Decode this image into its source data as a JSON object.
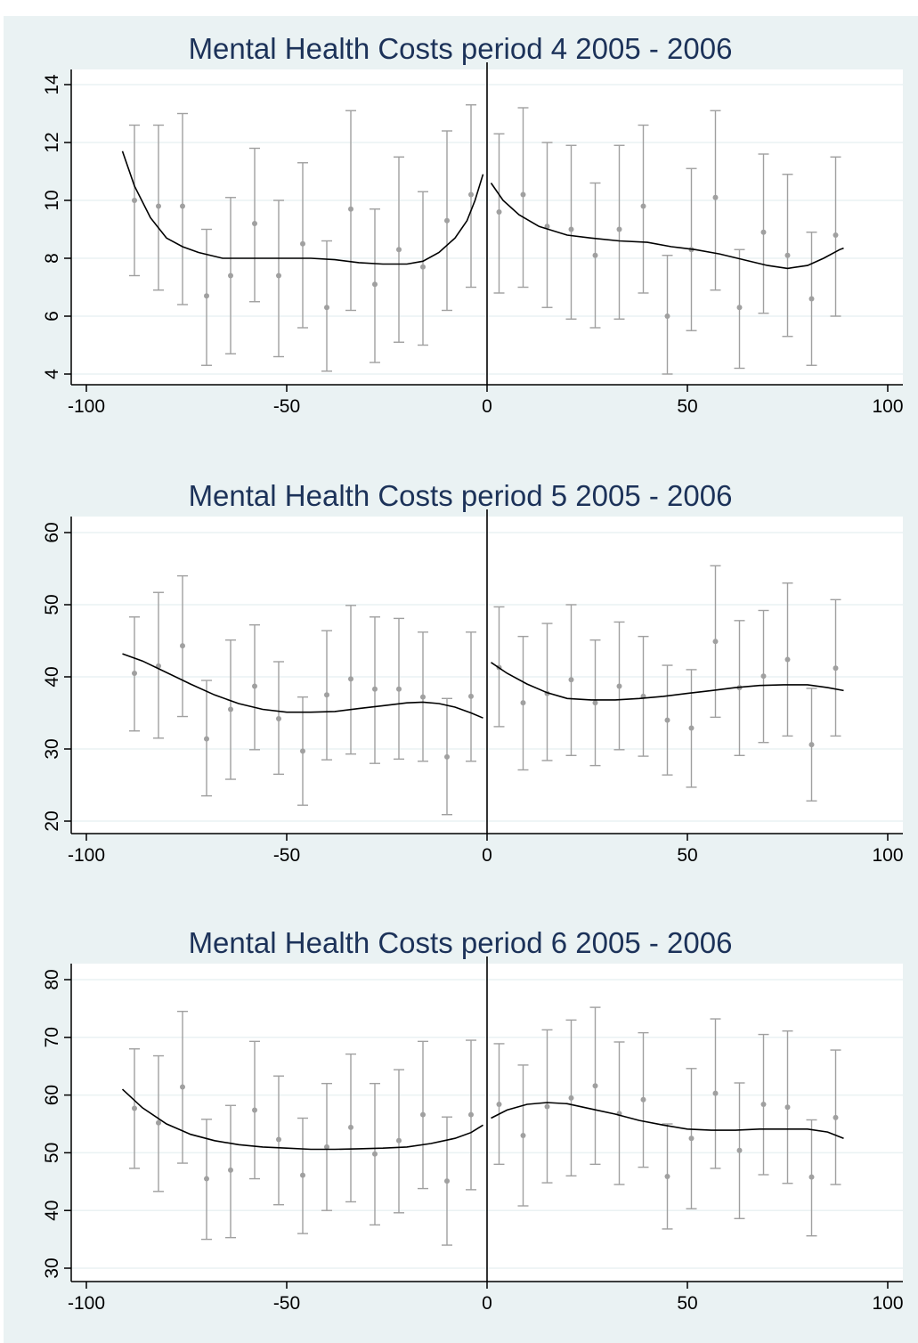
{
  "colors": {
    "background": "#eaf2f3",
    "plot_area": "#ffffff",
    "grid": "#eaf2f3",
    "title": "#1c3259",
    "points": "#a0a0a0",
    "fit_line": "#000000",
    "cutoff_line": "#000000"
  },
  "chart_data": [
    {
      "type": "scatter",
      "title": "Mental Health Costs period 4 2005 - 2006",
      "xlabel": "",
      "ylabel": "",
      "xlim": [
        -100,
        100
      ],
      "ylim": [
        4,
        14
      ],
      "xticks": [
        -100,
        -50,
        0,
        50,
        100
      ],
      "yticks": [
        4,
        6,
        8,
        10,
        12,
        14
      ],
      "grid": true,
      "cutoff_x": 0,
      "points": [
        {
          "x": -88,
          "y": 10.0,
          "low": 7.4,
          "high": 12.6
        },
        {
          "x": -82,
          "y": 9.8,
          "low": 6.9,
          "high": 12.6
        },
        {
          "x": -76,
          "y": 9.8,
          "low": 6.4,
          "high": 13.0
        },
        {
          "x": -70,
          "y": 6.7,
          "low": 4.3,
          "high": 9.0
        },
        {
          "x": -64,
          "y": 7.4,
          "low": 4.7,
          "high": 10.1
        },
        {
          "x": -58,
          "y": 9.2,
          "low": 6.5,
          "high": 11.8
        },
        {
          "x": -52,
          "y": 7.4,
          "low": 4.6,
          "high": 10.0
        },
        {
          "x": -46,
          "y": 8.5,
          "low": 5.6,
          "high": 11.3
        },
        {
          "x": -40,
          "y": 6.3,
          "low": 4.1,
          "high": 8.6
        },
        {
          "x": -34,
          "y": 9.7,
          "low": 6.2,
          "high": 13.1
        },
        {
          "x": -28,
          "y": 7.1,
          "low": 4.4,
          "high": 9.7
        },
        {
          "x": -22,
          "y": 8.3,
          "low": 5.1,
          "high": 11.5
        },
        {
          "x": -16,
          "y": 7.7,
          "low": 5.0,
          "high": 10.3
        },
        {
          "x": -10,
          "y": 9.3,
          "low": 6.2,
          "high": 12.4
        },
        {
          "x": -4,
          "y": 10.2,
          "low": 7.0,
          "high": 13.3
        },
        {
          "x": 3,
          "y": 9.6,
          "low": 6.8,
          "high": 12.3
        },
        {
          "x": 9,
          "y": 10.2,
          "low": 7.0,
          "high": 13.2
        },
        {
          "x": 15,
          "y": 9.1,
          "low": 6.3,
          "high": 12.0
        },
        {
          "x": 21,
          "y": 9.0,
          "low": 5.9,
          "high": 11.9
        },
        {
          "x": 27,
          "y": 8.1,
          "low": 5.6,
          "high": 10.6
        },
        {
          "x": 33,
          "y": 9.0,
          "low": 5.9,
          "high": 11.9
        },
        {
          "x": 39,
          "y": 9.8,
          "low": 6.8,
          "high": 12.6
        },
        {
          "x": 45,
          "y": 6.0,
          "low": 4.0,
          "high": 8.1
        },
        {
          "x": 51,
          "y": 8.3,
          "low": 5.5,
          "high": 11.1
        },
        {
          "x": 57,
          "y": 10.1,
          "low": 6.9,
          "high": 13.1
        },
        {
          "x": 63,
          "y": 6.3,
          "low": 4.2,
          "high": 8.3
        },
        {
          "x": 69,
          "y": 8.9,
          "low": 6.1,
          "high": 11.6
        },
        {
          "x": 75,
          "y": 8.1,
          "low": 5.3,
          "high": 10.9
        },
        {
          "x": 81,
          "y": 6.6,
          "low": 4.3,
          "high": 8.9
        },
        {
          "x": 87,
          "y": 8.8,
          "low": 6.0,
          "high": 11.5
        }
      ],
      "fit_left": [
        [
          -91,
          11.7
        ],
        [
          -88,
          10.5
        ],
        [
          -84,
          9.4
        ],
        [
          -80,
          8.7
        ],
        [
          -76,
          8.4
        ],
        [
          -72,
          8.2
        ],
        [
          -66,
          8.0
        ],
        [
          -60,
          8.0
        ],
        [
          -50,
          8.0
        ],
        [
          -44,
          8.0
        ],
        [
          -38,
          7.95
        ],
        [
          -32,
          7.85
        ],
        [
          -26,
          7.8
        ],
        [
          -20,
          7.8
        ],
        [
          -16,
          7.9
        ],
        [
          -12,
          8.2
        ],
        [
          -8,
          8.7
        ],
        [
          -5,
          9.3
        ],
        [
          -3,
          10.0
        ],
        [
          -1,
          10.9
        ]
      ],
      "fit_right": [
        [
          1,
          10.6
        ],
        [
          4,
          10.0
        ],
        [
          8,
          9.5
        ],
        [
          13,
          9.1
        ],
        [
          20,
          8.8
        ],
        [
          26,
          8.7
        ],
        [
          33,
          8.6
        ],
        [
          40,
          8.55
        ],
        [
          46,
          8.4
        ],
        [
          52,
          8.3
        ],
        [
          58,
          8.15
        ],
        [
          64,
          7.95
        ],
        [
          70,
          7.75
        ],
        [
          75,
          7.65
        ],
        [
          80,
          7.75
        ],
        [
          84,
          8.0
        ],
        [
          88,
          8.3
        ],
        [
          89,
          8.35
        ]
      ]
    },
    {
      "type": "scatter",
      "title": "Mental Health Costs period 5 2005 - 2006",
      "xlabel": "",
      "ylabel": "",
      "xlim": [
        -100,
        100
      ],
      "ylim": [
        20,
        60
      ],
      "xticks": [
        -100,
        -50,
        0,
        50,
        100
      ],
      "yticks": [
        20,
        30,
        40,
        50,
        60
      ],
      "grid": true,
      "cutoff_x": 0,
      "points": [
        {
          "x": -88,
          "y": 40.5,
          "low": 32.5,
          "high": 48.3
        },
        {
          "x": -82,
          "y": 41.5,
          "low": 31.5,
          "high": 51.7
        },
        {
          "x": -76,
          "y": 44.3,
          "low": 34.5,
          "high": 54.0
        },
        {
          "x": -70,
          "y": 31.4,
          "low": 23.5,
          "high": 39.5
        },
        {
          "x": -64,
          "y": 35.5,
          "low": 25.8,
          "high": 45.1
        },
        {
          "x": -58,
          "y": 38.7,
          "low": 29.9,
          "high": 47.2
        },
        {
          "x": -52,
          "y": 34.2,
          "low": 26.5,
          "high": 42.1
        },
        {
          "x": -46,
          "y": 29.7,
          "low": 22.2,
          "high": 37.2
        },
        {
          "x": -40,
          "y": 37.5,
          "low": 28.5,
          "high": 46.4
        },
        {
          "x": -34,
          "y": 39.7,
          "low": 29.3,
          "high": 49.9
        },
        {
          "x": -28,
          "y": 38.3,
          "low": 28.0,
          "high": 48.3
        },
        {
          "x": -22,
          "y": 38.3,
          "low": 28.6,
          "high": 48.1
        },
        {
          "x": -16,
          "y": 37.2,
          "low": 28.3,
          "high": 46.2
        },
        {
          "x": -10,
          "y": 28.9,
          "low": 20.9,
          "high": 37.0
        },
        {
          "x": -4,
          "y": 37.3,
          "low": 28.3,
          "high": 46.2
        },
        {
          "x": 3,
          "y": 41.3,
          "low": 33.1,
          "high": 49.7
        },
        {
          "x": 9,
          "y": 36.4,
          "low": 27.1,
          "high": 45.6
        },
        {
          "x": 15,
          "y": 37.7,
          "low": 28.4,
          "high": 47.4
        },
        {
          "x": 21,
          "y": 39.6,
          "low": 29.1,
          "high": 50.0
        },
        {
          "x": 27,
          "y": 36.4,
          "low": 27.7,
          "high": 45.1
        },
        {
          "x": 33,
          "y": 38.7,
          "low": 29.9,
          "high": 47.6
        },
        {
          "x": 39,
          "y": 37.3,
          "low": 29.0,
          "high": 45.6
        },
        {
          "x": 45,
          "y": 34.0,
          "low": 26.4,
          "high": 41.6
        },
        {
          "x": 51,
          "y": 32.9,
          "low": 24.7,
          "high": 41.0
        },
        {
          "x": 57,
          "y": 44.9,
          "low": 34.4,
          "high": 55.4
        },
        {
          "x": 63,
          "y": 38.5,
          "low": 29.1,
          "high": 47.8
        },
        {
          "x": 69,
          "y": 40.1,
          "low": 30.9,
          "high": 49.2
        },
        {
          "x": 75,
          "y": 42.4,
          "low": 31.8,
          "high": 53.0
        },
        {
          "x": 81,
          "y": 30.6,
          "low": 22.8,
          "high": 38.4
        },
        {
          "x": 87,
          "y": 41.2,
          "low": 31.8,
          "high": 50.7
        }
      ],
      "fit_left": [
        [
          -91,
          43.2
        ],
        [
          -86,
          42.2
        ],
        [
          -80,
          40.6
        ],
        [
          -74,
          39.0
        ],
        [
          -68,
          37.5
        ],
        [
          -62,
          36.3
        ],
        [
          -56,
          35.5
        ],
        [
          -50,
          35.1
        ],
        [
          -44,
          35.1
        ],
        [
          -38,
          35.2
        ],
        [
          -32,
          35.6
        ],
        [
          -26,
          36.0
        ],
        [
          -20,
          36.4
        ],
        [
          -16,
          36.5
        ],
        [
          -12,
          36.3
        ],
        [
          -8,
          35.8
        ],
        [
          -4,
          35.0
        ],
        [
          -1,
          34.3
        ]
      ],
      "fit_right": [
        [
          1,
          42.0
        ],
        [
          5,
          40.5
        ],
        [
          10,
          39.0
        ],
        [
          15,
          37.8
        ],
        [
          20,
          37.0
        ],
        [
          26,
          36.8
        ],
        [
          32,
          36.8
        ],
        [
          38,
          37.0
        ],
        [
          44,
          37.3
        ],
        [
          50,
          37.7
        ],
        [
          56,
          38.1
        ],
        [
          62,
          38.5
        ],
        [
          68,
          38.8
        ],
        [
          74,
          38.9
        ],
        [
          80,
          38.9
        ],
        [
          85,
          38.5
        ],
        [
          89,
          38.1
        ]
      ]
    },
    {
      "type": "scatter",
      "title": "Mental Health Costs period 6 2005 - 2006",
      "xlabel": "",
      "ylabel": "",
      "xlim": [
        -100,
        100
      ],
      "ylim": [
        30,
        80
      ],
      "xticks": [
        -100,
        -50,
        0,
        50,
        100
      ],
      "yticks": [
        30,
        40,
        50,
        60,
        70,
        80
      ],
      "grid": true,
      "cutoff_x": 0,
      "points": [
        {
          "x": -88,
          "y": 57.7,
          "low": 47.3,
          "high": 68.0
        },
        {
          "x": -82,
          "y": 55.2,
          "low": 43.3,
          "high": 66.8
        },
        {
          "x": -76,
          "y": 61.4,
          "low": 48.2,
          "high": 74.5
        },
        {
          "x": -70,
          "y": 45.5,
          "low": 35.0,
          "high": 55.8
        },
        {
          "x": -64,
          "y": 47.0,
          "low": 35.3,
          "high": 58.2
        },
        {
          "x": -58,
          "y": 57.4,
          "low": 45.5,
          "high": 69.3
        },
        {
          "x": -52,
          "y": 52.3,
          "low": 41.0,
          "high": 63.3
        },
        {
          "x": -46,
          "y": 46.1,
          "low": 36.0,
          "high": 56.0
        },
        {
          "x": -40,
          "y": 51.0,
          "low": 40.0,
          "high": 62.0
        },
        {
          "x": -34,
          "y": 54.4,
          "low": 41.5,
          "high": 67.1
        },
        {
          "x": -28,
          "y": 49.8,
          "low": 37.5,
          "high": 62.0
        },
        {
          "x": -22,
          "y": 52.1,
          "low": 39.6,
          "high": 64.4
        },
        {
          "x": -16,
          "y": 56.6,
          "low": 43.8,
          "high": 69.3
        },
        {
          "x": -10,
          "y": 45.1,
          "low": 34.0,
          "high": 56.2
        },
        {
          "x": -4,
          "y": 56.6,
          "low": 43.6,
          "high": 69.5
        },
        {
          "x": 3,
          "y": 58.4,
          "low": 48.0,
          "high": 68.9
        },
        {
          "x": 9,
          "y": 53.0,
          "low": 40.8,
          "high": 65.2
        },
        {
          "x": 15,
          "y": 58.0,
          "low": 44.8,
          "high": 71.3
        },
        {
          "x": 21,
          "y": 59.5,
          "low": 46.0,
          "high": 73.0
        },
        {
          "x": 27,
          "y": 61.6,
          "low": 48.0,
          "high": 75.2
        },
        {
          "x": 33,
          "y": 56.8,
          "low": 44.5,
          "high": 69.2
        },
        {
          "x": 39,
          "y": 59.2,
          "low": 47.5,
          "high": 70.8
        },
        {
          "x": 45,
          "y": 45.9,
          "low": 36.8,
          "high": 55.0
        },
        {
          "x": 51,
          "y": 52.5,
          "low": 40.3,
          "high": 64.6
        },
        {
          "x": 57,
          "y": 60.3,
          "low": 47.3,
          "high": 73.2
        },
        {
          "x": 63,
          "y": 50.4,
          "low": 38.6,
          "high": 62.1
        },
        {
          "x": 69,
          "y": 58.4,
          "low": 46.2,
          "high": 70.5
        },
        {
          "x": 75,
          "y": 57.9,
          "low": 44.7,
          "high": 71.1
        },
        {
          "x": 81,
          "y": 45.8,
          "low": 35.6,
          "high": 55.7
        },
        {
          "x": 87,
          "y": 56.1,
          "low": 44.5,
          "high": 67.8
        }
      ],
      "fit_left": [
        [
          -91,
          61.0
        ],
        [
          -86,
          57.8
        ],
        [
          -80,
          55.0
        ],
        [
          -74,
          53.2
        ],
        [
          -68,
          52.1
        ],
        [
          -62,
          51.4
        ],
        [
          -56,
          51.0
        ],
        [
          -50,
          50.8
        ],
        [
          -44,
          50.6
        ],
        [
          -38,
          50.6
        ],
        [
          -32,
          50.7
        ],
        [
          -26,
          50.8
        ],
        [
          -20,
          51.0
        ],
        [
          -14,
          51.6
        ],
        [
          -8,
          52.5
        ],
        [
          -4,
          53.5
        ],
        [
          -1,
          54.8
        ]
      ],
      "fit_right": [
        [
          1,
          56.0
        ],
        [
          5,
          57.4
        ],
        [
          10,
          58.4
        ],
        [
          15,
          58.7
        ],
        [
          20,
          58.5
        ],
        [
          26,
          57.6
        ],
        [
          32,
          56.7
        ],
        [
          38,
          55.6
        ],
        [
          44,
          54.8
        ],
        [
          50,
          54.1
        ],
        [
          56,
          53.9
        ],
        [
          62,
          53.9
        ],
        [
          68,
          54.1
        ],
        [
          74,
          54.1
        ],
        [
          80,
          54.1
        ],
        [
          85,
          53.6
        ],
        [
          89,
          52.5
        ]
      ]
    }
  ]
}
